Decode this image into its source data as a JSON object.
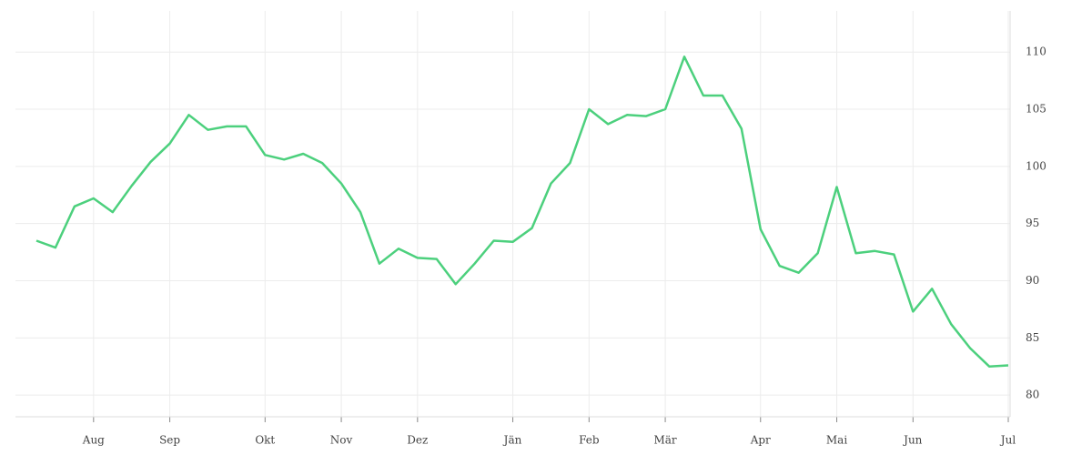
{
  "chart_data": {
    "type": "line",
    "categories": [
      null,
      null,
      null,
      "Aug",
      null,
      null,
      null,
      "Sep",
      null,
      null,
      null,
      null,
      "Okt",
      null,
      null,
      null,
      "Nov",
      null,
      null,
      null,
      "Dez",
      null,
      null,
      null,
      null,
      "Jän",
      null,
      null,
      null,
      "Feb",
      null,
      null,
      null,
      "Mär",
      null,
      null,
      null,
      null,
      "Apr",
      null,
      null,
      null,
      "Mai",
      null,
      null,
      null,
      "Jun",
      null,
      null,
      null,
      null,
      "Jul"
    ],
    "series": [
      {
        "color": "#4cd07d",
        "values": [
          93.5,
          92.9,
          96.5,
          97.2,
          96.0,
          98.3,
          100.4,
          102.0,
          104.5,
          103.2,
          103.5,
          103.5,
          101.0,
          100.6,
          101.1,
          100.3,
          98.5,
          96.0,
          91.5,
          92.8,
          92.0,
          91.9,
          89.7,
          91.5,
          93.5,
          93.4,
          94.6,
          98.5,
          100.3,
          105.0,
          103.7,
          104.5,
          104.4,
          105.0,
          109.6,
          106.2,
          106.2,
          103.3,
          94.5,
          91.3,
          90.7,
          92.4,
          98.2,
          92.4,
          92.6,
          92.3,
          87.3,
          89.3,
          86.2,
          84.1,
          82.5,
          82.6
        ]
      }
    ],
    "ylim": [
      78.1,
      113.6
    ],
    "yticks": [
      80,
      85,
      90,
      95,
      100,
      105,
      110
    ],
    "grid": true
  }
}
